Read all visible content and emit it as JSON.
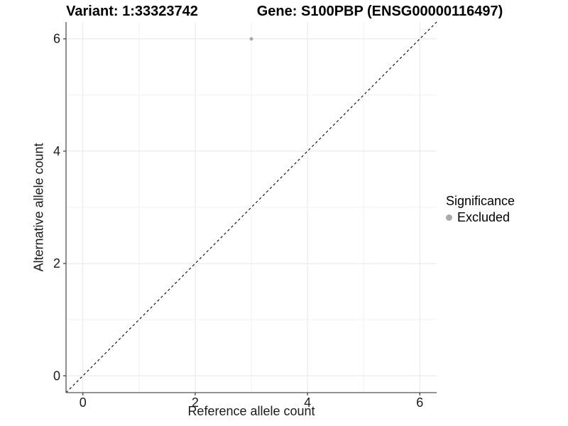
{
  "chart_data": {
    "type": "scatter",
    "title_left": "Variant: 1:33323742",
    "title_right": "Gene: S100PBP (ENSG00000116497)",
    "xlabel": "Reference allele count",
    "ylabel": "Alternative allele count",
    "xlim": [
      -0.3,
      6.3
    ],
    "ylim": [
      -0.3,
      6.3
    ],
    "xticks": [
      0,
      2,
      4,
      6
    ],
    "yticks": [
      0,
      2,
      4,
      6
    ],
    "xminor": [
      1,
      3,
      5
    ],
    "yminor": [
      1,
      3,
      5
    ],
    "grid": true,
    "identity_line": {
      "style": "dashed",
      "color": "#000000",
      "from": [
        -0.3,
        -0.3
      ],
      "to": [
        6.3,
        6.3
      ]
    },
    "series": [
      {
        "name": "Excluded",
        "color": "#aaaaaa",
        "points": [
          {
            "x": 3,
            "y": 6
          }
        ]
      }
    ],
    "legend": {
      "title": "Significance",
      "position": "right",
      "items": [
        {
          "label": "Excluded",
          "color": "#aaaaaa"
        }
      ]
    },
    "colors": {
      "grid_major": "#e6e6e6",
      "grid_minor": "#f2f2f2",
      "axis": "#555555",
      "tick": "#333333",
      "text": "#1a1a1a"
    }
  }
}
